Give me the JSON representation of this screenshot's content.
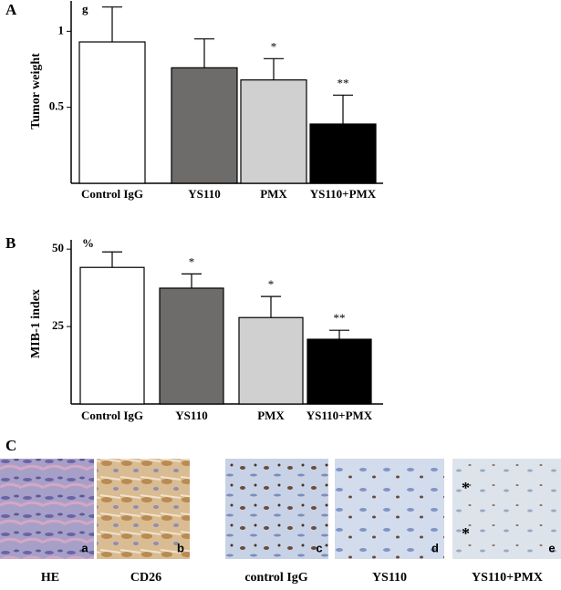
{
  "chart_data": [
    {
      "type": "bar",
      "panel_label": "A",
      "y_unit": "g",
      "ylabel": "Tumor weight",
      "categories": [
        "Control IgG",
        "YS110",
        "PMX",
        "YS110+PMX"
      ],
      "values": [
        0.93,
        0.76,
        0.68,
        0.39
      ],
      "errors": [
        0.23,
        0.19,
        0.14,
        0.19
      ],
      "significance": [
        null,
        null,
        "*",
        "**"
      ],
      "colors": [
        "#ffffff",
        "#6e6b6b",
        "#d0d0d0",
        "#000000"
      ],
      "ylim": [
        0,
        1.2
      ],
      "yticks": [
        0.5,
        1
      ]
    },
    {
      "type": "bar",
      "panel_label": "B",
      "y_unit": "%",
      "ylabel": "MIB-1 index",
      "categories": [
        "Control IgG",
        "YS110",
        "PMX",
        "YS110+PMX"
      ],
      "values": [
        44.1,
        37.4,
        27.9,
        20.9
      ],
      "errors": [
        5,
        4.6,
        6.8,
        2.9
      ],
      "significance": [
        null,
        "*",
        "*",
        "**"
      ],
      "colors": [
        "#ffffff",
        "#6e6b6b",
        "#d0d0d0",
        "#000000"
      ],
      "ylim": [
        0,
        53
      ],
      "yticks": [
        25,
        50
      ]
    }
  ],
  "panel_c": {
    "panel_label": "C",
    "images": [
      {
        "letter": "a",
        "label": "HE"
      },
      {
        "letter": "b",
        "label": "CD26"
      },
      {
        "letter": "c",
        "label": "control IgG"
      },
      {
        "letter": "d",
        "label": "YS110"
      },
      {
        "letter": "e",
        "label": "YS110+PMX",
        "marks": [
          "*",
          "*"
        ]
      }
    ]
  }
}
